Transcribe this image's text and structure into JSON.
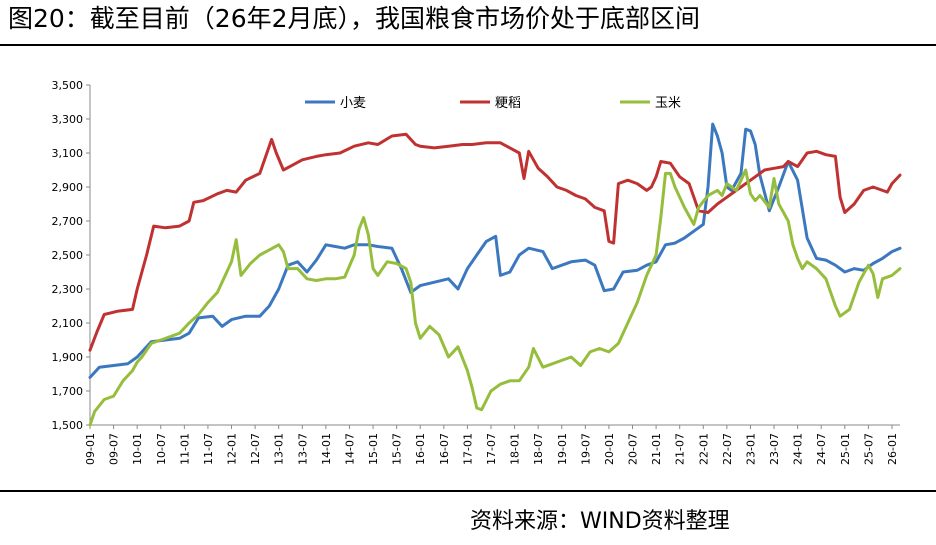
{
  "page": {
    "title": "图20：截至目前（26年2月底），我国粮食市场价处于底部区间",
    "source": "资料来源：WIND资料整理"
  },
  "chart_data": {
    "type": "line",
    "title": "",
    "xlabel": "",
    "ylabel": "",
    "ylim": [
      1500,
      3500
    ],
    "yticks": [
      1500,
      1700,
      1900,
      2100,
      2300,
      2500,
      2700,
      2900,
      3100,
      3300,
      3500
    ],
    "ytick_labels": [
      "1,500",
      "1,700",
      "1,900",
      "2,100",
      "2,300",
      "2,500",
      "2,700",
      "2,900",
      "3,100",
      "3,300",
      "3,500"
    ],
    "x_ticks": [
      "09-01",
      "09-07",
      "10-01",
      "10-07",
      "11-01",
      "11-07",
      "12-01",
      "12-07",
      "13-01",
      "13-07",
      "14-01",
      "14-07",
      "15-01",
      "15-07",
      "16-01",
      "16-07",
      "17-01",
      "17-07",
      "18-01",
      "18-07",
      "19-01",
      "19-07",
      "20-01",
      "20-07",
      "21-01",
      "21-07",
      "22-01",
      "22-07",
      "23-01",
      "23-07",
      "24-01",
      "24-07",
      "25-01",
      "25-07",
      "26-01"
    ],
    "xlim": [
      2009.0,
      2026.17
    ],
    "grid": false,
    "legend_position": "top",
    "series": [
      {
        "name": "小麦",
        "color": "#3c78c0",
        "points": [
          [
            2009.0,
            1780
          ],
          [
            2009.2,
            1840
          ],
          [
            2009.5,
            1850
          ],
          [
            2009.8,
            1860
          ],
          [
            2010.0,
            1900
          ],
          [
            2010.3,
            1990
          ],
          [
            2010.6,
            2000
          ],
          [
            2010.9,
            2010
          ],
          [
            2011.1,
            2040
          ],
          [
            2011.3,
            2130
          ],
          [
            2011.6,
            2140
          ],
          [
            2011.8,
            2080
          ],
          [
            2012.0,
            2120
          ],
          [
            2012.3,
            2140
          ],
          [
            2012.6,
            2140
          ],
          [
            2012.8,
            2200
          ],
          [
            2013.0,
            2300
          ],
          [
            2013.2,
            2440
          ],
          [
            2013.4,
            2460
          ],
          [
            2013.6,
            2400
          ],
          [
            2013.8,
            2470
          ],
          [
            2014.0,
            2560
          ],
          [
            2014.2,
            2550
          ],
          [
            2014.4,
            2540
          ],
          [
            2014.6,
            2560
          ],
          [
            2014.9,
            2560
          ],
          [
            2015.1,
            2550
          ],
          [
            2015.4,
            2540
          ],
          [
            2015.6,
            2420
          ],
          [
            2015.8,
            2280
          ],
          [
            2016.0,
            2320
          ],
          [
            2016.3,
            2340
          ],
          [
            2016.6,
            2360
          ],
          [
            2016.8,
            2300
          ],
          [
            2017.0,
            2420
          ],
          [
            2017.2,
            2500
          ],
          [
            2017.4,
            2580
          ],
          [
            2017.6,
            2610
          ],
          [
            2017.7,
            2380
          ],
          [
            2017.9,
            2400
          ],
          [
            2018.1,
            2500
          ],
          [
            2018.3,
            2540
          ],
          [
            2018.6,
            2520
          ],
          [
            2018.8,
            2420
          ],
          [
            2019.0,
            2440
          ],
          [
            2019.2,
            2460
          ],
          [
            2019.5,
            2470
          ],
          [
            2019.7,
            2440
          ],
          [
            2019.9,
            2290
          ],
          [
            2020.1,
            2300
          ],
          [
            2020.3,
            2400
          ],
          [
            2020.6,
            2410
          ],
          [
            2020.8,
            2440
          ],
          [
            2021.0,
            2460
          ],
          [
            2021.2,
            2560
          ],
          [
            2021.4,
            2570
          ],
          [
            2021.6,
            2600
          ],
          [
            2021.8,
            2640
          ],
          [
            2022.0,
            2680
          ],
          [
            2022.1,
            2900
          ],
          [
            2022.2,
            3270
          ],
          [
            2022.3,
            3200
          ],
          [
            2022.4,
            3100
          ],
          [
            2022.5,
            2900
          ],
          [
            2022.6,
            2880
          ],
          [
            2022.8,
            2980
          ],
          [
            2022.9,
            3240
          ],
          [
            2023.0,
            3230
          ],
          [
            2023.1,
            3150
          ],
          [
            2023.2,
            2970
          ],
          [
            2023.4,
            2760
          ],
          [
            2023.6,
            2900
          ],
          [
            2023.8,
            3050
          ],
          [
            2024.0,
            2940
          ],
          [
            2024.2,
            2600
          ],
          [
            2024.4,
            2480
          ],
          [
            2024.6,
            2470
          ],
          [
            2024.8,
            2440
          ],
          [
            2025.0,
            2400
          ],
          [
            2025.2,
            2420
          ],
          [
            2025.4,
            2410
          ],
          [
            2025.6,
            2450
          ],
          [
            2025.8,
            2480
          ],
          [
            2026.0,
            2520
          ],
          [
            2026.17,
            2540
          ]
        ]
      },
      {
        "name": "粳稻",
        "color": "#c03232",
        "points": [
          [
            2009.0,
            1940
          ],
          [
            2009.15,
            2050
          ],
          [
            2009.3,
            2150
          ],
          [
            2009.6,
            2170
          ],
          [
            2009.9,
            2180
          ],
          [
            2010.0,
            2300
          ],
          [
            2010.2,
            2500
          ],
          [
            2010.35,
            2670
          ],
          [
            2010.6,
            2660
          ],
          [
            2010.9,
            2670
          ],
          [
            2011.1,
            2700
          ],
          [
            2011.2,
            2810
          ],
          [
            2011.4,
            2820
          ],
          [
            2011.7,
            2860
          ],
          [
            2011.9,
            2880
          ],
          [
            2012.1,
            2870
          ],
          [
            2012.3,
            2940
          ],
          [
            2012.6,
            2980
          ],
          [
            2012.75,
            3100
          ],
          [
            2012.85,
            3180
          ],
          [
            2012.95,
            3100
          ],
          [
            2013.1,
            3000
          ],
          [
            2013.3,
            3030
          ],
          [
            2013.5,
            3060
          ],
          [
            2013.8,
            3080
          ],
          [
            2014.0,
            3090
          ],
          [
            2014.3,
            3100
          ],
          [
            2014.6,
            3140
          ],
          [
            2014.9,
            3160
          ],
          [
            2015.1,
            3150
          ],
          [
            2015.4,
            3200
          ],
          [
            2015.7,
            3210
          ],
          [
            2015.9,
            3150
          ],
          [
            2016.0,
            3140
          ],
          [
            2016.3,
            3130
          ],
          [
            2016.6,
            3140
          ],
          [
            2016.9,
            3150
          ],
          [
            2017.1,
            3150
          ],
          [
            2017.4,
            3160
          ],
          [
            2017.7,
            3160
          ],
          [
            2017.9,
            3130
          ],
          [
            2018.1,
            3100
          ],
          [
            2018.2,
            2950
          ],
          [
            2018.3,
            3110
          ],
          [
            2018.5,
            3010
          ],
          [
            2018.7,
            2960
          ],
          [
            2018.9,
            2900
          ],
          [
            2019.1,
            2880
          ],
          [
            2019.3,
            2850
          ],
          [
            2019.5,
            2830
          ],
          [
            2019.7,
            2780
          ],
          [
            2019.9,
            2760
          ],
          [
            2020.0,
            2580
          ],
          [
            2020.1,
            2570
          ],
          [
            2020.2,
            2920
          ],
          [
            2020.4,
            2940
          ],
          [
            2020.6,
            2920
          ],
          [
            2020.8,
            2880
          ],
          [
            2020.9,
            2900
          ],
          [
            2021.0,
            2960
          ],
          [
            2021.1,
            3050
          ],
          [
            2021.3,
            3040
          ],
          [
            2021.5,
            2960
          ],
          [
            2021.7,
            2920
          ],
          [
            2021.9,
            2760
          ],
          [
            2022.1,
            2750
          ],
          [
            2022.3,
            2800
          ],
          [
            2022.5,
            2840
          ],
          [
            2022.7,
            2880
          ],
          [
            2022.9,
            2920
          ],
          [
            2023.1,
            2960
          ],
          [
            2023.3,
            3000
          ],
          [
            2023.5,
            3010
          ],
          [
            2023.7,
            3020
          ],
          [
            2023.8,
            3050
          ],
          [
            2024.0,
            3020
          ],
          [
            2024.2,
            3100
          ],
          [
            2024.4,
            3110
          ],
          [
            2024.6,
            3090
          ],
          [
            2024.8,
            3080
          ],
          [
            2024.9,
            2840
          ],
          [
            2025.0,
            2750
          ],
          [
            2025.2,
            2800
          ],
          [
            2025.4,
            2880
          ],
          [
            2025.6,
            2900
          ],
          [
            2025.8,
            2880
          ],
          [
            2025.9,
            2870
          ],
          [
            2026.0,
            2920
          ],
          [
            2026.17,
            2970
          ]
        ]
      },
      {
        "name": "玉米",
        "color": "#96be3c",
        "points": [
          [
            2009.0,
            1500
          ],
          [
            2009.1,
            1580
          ],
          [
            2009.3,
            1650
          ],
          [
            2009.5,
            1670
          ],
          [
            2009.7,
            1760
          ],
          [
            2009.9,
            1820
          ],
          [
            2010.0,
            1870
          ],
          [
            2010.1,
            1900
          ],
          [
            2010.3,
            1980
          ],
          [
            2010.5,
            2000
          ],
          [
            2010.7,
            2020
          ],
          [
            2010.9,
            2040
          ],
          [
            2011.1,
            2100
          ],
          [
            2011.3,
            2150
          ],
          [
            2011.5,
            2220
          ],
          [
            2011.7,
            2280
          ],
          [
            2011.9,
            2400
          ],
          [
            2012.0,
            2460
          ],
          [
            2012.1,
            2590
          ],
          [
            2012.2,
            2380
          ],
          [
            2012.4,
            2450
          ],
          [
            2012.6,
            2500
          ],
          [
            2012.8,
            2530
          ],
          [
            2013.0,
            2560
          ],
          [
            2013.1,
            2520
          ],
          [
            2013.2,
            2420
          ],
          [
            2013.4,
            2420
          ],
          [
            2013.6,
            2360
          ],
          [
            2013.8,
            2350
          ],
          [
            2014.0,
            2360
          ],
          [
            2014.2,
            2360
          ],
          [
            2014.4,
            2370
          ],
          [
            2014.6,
            2500
          ],
          [
            2014.7,
            2650
          ],
          [
            2014.8,
            2720
          ],
          [
            2014.9,
            2620
          ],
          [
            2015.0,
            2420
          ],
          [
            2015.1,
            2380
          ],
          [
            2015.3,
            2460
          ],
          [
            2015.5,
            2450
          ],
          [
            2015.7,
            2420
          ],
          [
            2015.8,
            2340
          ],
          [
            2015.9,
            2100
          ],
          [
            2016.0,
            2010
          ],
          [
            2016.2,
            2080
          ],
          [
            2016.4,
            2030
          ],
          [
            2016.6,
            1900
          ],
          [
            2016.8,
            1960
          ],
          [
            2017.0,
            1820
          ],
          [
            2017.1,
            1720
          ],
          [
            2017.2,
            1600
          ],
          [
            2017.3,
            1590
          ],
          [
            2017.5,
            1700
          ],
          [
            2017.7,
            1740
          ],
          [
            2017.9,
            1760
          ],
          [
            2018.1,
            1760
          ],
          [
            2018.3,
            1840
          ],
          [
            2018.4,
            1950
          ],
          [
            2018.6,
            1840
          ],
          [
            2018.8,
            1860
          ],
          [
            2019.0,
            1880
          ],
          [
            2019.2,
            1900
          ],
          [
            2019.4,
            1850
          ],
          [
            2019.6,
            1930
          ],
          [
            2019.8,
            1950
          ],
          [
            2020.0,
            1930
          ],
          [
            2020.2,
            1980
          ],
          [
            2020.4,
            2100
          ],
          [
            2020.6,
            2220
          ],
          [
            2020.8,
            2380
          ],
          [
            2021.0,
            2500
          ],
          [
            2021.1,
            2720
          ],
          [
            2021.2,
            2980
          ],
          [
            2021.3,
            2980
          ],
          [
            2021.4,
            2900
          ],
          [
            2021.6,
            2780
          ],
          [
            2021.8,
            2680
          ],
          [
            2021.9,
            2780
          ],
          [
            2022.1,
            2850
          ],
          [
            2022.3,
            2880
          ],
          [
            2022.4,
            2850
          ],
          [
            2022.5,
            2920
          ],
          [
            2022.7,
            2880
          ],
          [
            2022.8,
            2940
          ],
          [
            2022.9,
            3000
          ],
          [
            2023.0,
            2860
          ],
          [
            2023.1,
            2820
          ],
          [
            2023.2,
            2850
          ],
          [
            2023.4,
            2780
          ],
          [
            2023.5,
            2950
          ],
          [
            2023.6,
            2800
          ],
          [
            2023.8,
            2700
          ],
          [
            2023.9,
            2560
          ],
          [
            2024.0,
            2480
          ],
          [
            2024.1,
            2420
          ],
          [
            2024.2,
            2460
          ],
          [
            2024.4,
            2420
          ],
          [
            2024.6,
            2360
          ],
          [
            2024.8,
            2200
          ],
          [
            2024.9,
            2140
          ],
          [
            2025.1,
            2180
          ],
          [
            2025.3,
            2340
          ],
          [
            2025.5,
            2440
          ],
          [
            2025.6,
            2390
          ],
          [
            2025.7,
            2250
          ],
          [
            2025.8,
            2360
          ],
          [
            2026.0,
            2380
          ],
          [
            2026.17,
            2420
          ]
        ]
      }
    ]
  }
}
